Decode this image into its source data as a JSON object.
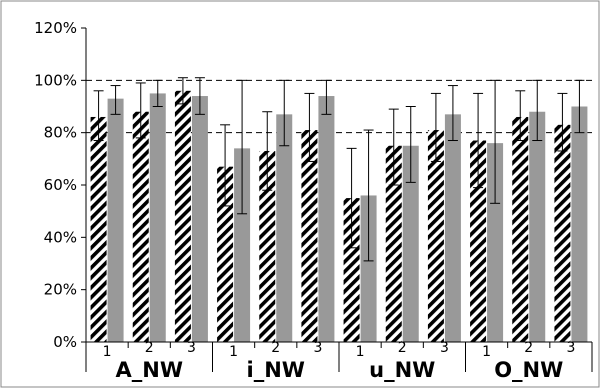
{
  "chart_data": {
    "type": "bar",
    "ylim": [
      0,
      120
    ],
    "y_tick_labels": [
      "0%",
      "20%",
      "40%",
      "60%",
      "80%",
      "100%",
      "120%"
    ],
    "y_tick_values": [
      0,
      20,
      40,
      60,
      80,
      100,
      120
    ],
    "dashed_gridlines_at": [
      80,
      100
    ],
    "groups": [
      "A_NW",
      "i_NW",
      "u_NW",
      "O_NW"
    ],
    "subcategories": [
      "1",
      "2",
      "3"
    ],
    "series": [
      {
        "style": "hatched",
        "color": "#000000",
        "values": [
          86,
          88,
          96,
          67,
          73,
          81,
          55,
          75,
          81,
          77,
          86,
          83
        ],
        "error_low": [
          77,
          78,
          91,
          52,
          58,
          69,
          36,
          60,
          69,
          59,
          77,
          73
        ],
        "error_high": [
          96,
          99,
          101,
          83,
          88,
          95,
          74,
          89,
          95,
          95,
          96,
          95
        ]
      },
      {
        "style": "solid",
        "color": "#999999",
        "values": [
          93,
          95,
          94,
          74,
          87,
          94,
          56,
          75,
          87,
          76,
          88,
          90
        ],
        "error_low": [
          87,
          90,
          87,
          49,
          75,
          87,
          31,
          61,
          77,
          53,
          77,
          80
        ],
        "error_high": [
          98,
          100,
          101,
          100,
          100,
          100,
          81,
          90,
          98,
          100,
          100,
          100
        ]
      }
    ]
  }
}
